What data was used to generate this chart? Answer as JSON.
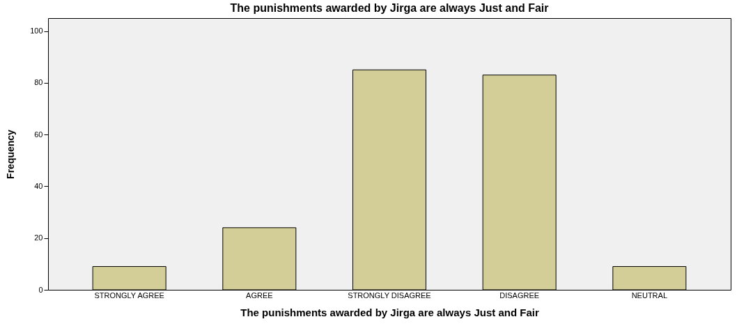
{
  "chart_data": {
    "type": "bar",
    "title": "The punishments awarded by Jirga are always Just and Fair",
    "xlabel": "The punishments awarded by Jirga are always Just and Fair",
    "ylabel": "Frequency",
    "categories": [
      "STRONGLY AGREE",
      "AGREE",
      "STRONGLY DISAGREE",
      "DISAGREE",
      "NEUTRAL"
    ],
    "values": [
      9,
      24,
      85,
      83,
      9
    ],
    "color": "#d3ce97",
    "ylim": [
      0,
      105
    ],
    "yticks": [
      0,
      20,
      40,
      60,
      80,
      100
    ],
    "grid": false
  }
}
